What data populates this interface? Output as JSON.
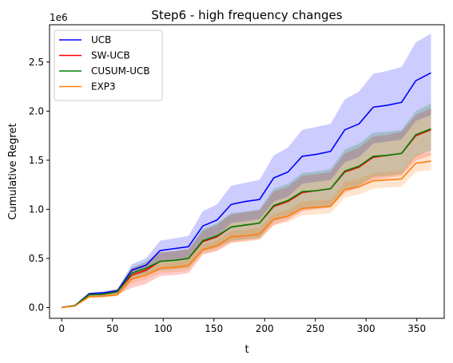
{
  "chart_data": {
    "type": "line",
    "title": "Step6 - high frequency changes",
    "xlabel": "t",
    "ylabel": "Cumulative Regret",
    "y_scale_label": "1e6",
    "xlim": [
      -12,
      377
    ],
    "ylim": [
      -110000,
      2880000
    ],
    "x_ticks": [
      0,
      50,
      100,
      150,
      200,
      250,
      300,
      350
    ],
    "x_tick_labels": [
      "0",
      "50",
      "100",
      "150",
      "200",
      "250",
      "300",
      "350"
    ],
    "y_ticks": [
      0,
      500000,
      1000000,
      1500000,
      2000000,
      2500000
    ],
    "y_tick_labels": [
      "0.0",
      "0.5",
      "1.0",
      "1.5",
      "2.0",
      "2.5"
    ],
    "grid": false,
    "legend_position": "top-left",
    "x": [
      0,
      13,
      27,
      41,
      55,
      69,
      83,
      97,
      111,
      125,
      139,
      153,
      167,
      181,
      195,
      209,
      223,
      237,
      251,
      265,
      279,
      293,
      307,
      321,
      335,
      349,
      364
    ],
    "series": [
      {
        "name": "UCB",
        "color": "#0000ff",
        "band_color": "#0000ff",
        "values": [
          0,
          20000,
          140000,
          150000,
          170000,
          380000,
          430000,
          580000,
          600000,
          620000,
          830000,
          890000,
          1050000,
          1080000,
          1100000,
          1320000,
          1380000,
          1540000,
          1560000,
          1590000,
          1810000,
          1870000,
          2040000,
          2060000,
          2090000,
          2310000,
          2390000
        ],
        "lower": [
          0,
          15000,
          130000,
          135000,
          150000,
          320000,
          360000,
          470000,
          485000,
          500000,
          680000,
          730000,
          860000,
          880000,
          900000,
          1080000,
          1130000,
          1260000,
          1280000,
          1300000,
          1480000,
          1530000,
          1670000,
          1690000,
          1710000,
          1900000,
          1960000
        ],
        "upper": [
          0,
          25000,
          150000,
          165000,
          190000,
          440000,
          500000,
          680000,
          705000,
          730000,
          980000,
          1050000,
          1240000,
          1270000,
          1300000,
          1550000,
          1630000,
          1810000,
          1840000,
          1870000,
          2120000,
          2200000,
          2380000,
          2410000,
          2450000,
          2700000,
          2790000
        ]
      },
      {
        "name": "SW-UCB",
        "color": "#ff0000",
        "band_color": "#ff0000",
        "values": [
          0,
          20000,
          130000,
          135000,
          160000,
          330000,
          380000,
          470000,
          480000,
          500000,
          670000,
          720000,
          820000,
          840000,
          860000,
          1030000,
          1080000,
          1170000,
          1190000,
          1210000,
          1380000,
          1430000,
          1530000,
          1550000,
          1570000,
          1750000,
          1810000
        ],
        "lower": [
          0,
          15000,
          110000,
          115000,
          130000,
          200000,
          240000,
          320000,
          330000,
          350000,
          540000,
          580000,
          660000,
          680000,
          700000,
          840000,
          890000,
          980000,
          1000000,
          1020000,
          1170000,
          1220000,
          1300000,
          1320000,
          1340000,
          1500000,
          1550000
        ],
        "upper": [
          0,
          25000,
          150000,
          155000,
          190000,
          400000,
          450000,
          560000,
          575000,
          595000,
          780000,
          840000,
          950000,
          970000,
          990000,
          1180000,
          1230000,
          1340000,
          1360000,
          1380000,
          1570000,
          1630000,
          1740000,
          1760000,
          1790000,
          1960000,
          2030000
        ]
      },
      {
        "name": "CUSUM-UCB",
        "color": "#008000",
        "band_color": "#008000",
        "values": [
          0,
          20000,
          130000,
          135000,
          160000,
          350000,
          400000,
          470000,
          480000,
          500000,
          680000,
          730000,
          820000,
          840000,
          860000,
          1040000,
          1090000,
          1180000,
          1190000,
          1210000,
          1390000,
          1440000,
          1540000,
          1550000,
          1570000,
          1760000,
          1820000
        ],
        "lower": [
          0,
          15000,
          110000,
          115000,
          140000,
          290000,
          330000,
          380000,
          390000,
          405000,
          570000,
          610000,
          680000,
          695000,
          710000,
          880000,
          920000,
          1000000,
          1010000,
          1030000,
          1200000,
          1240000,
          1330000,
          1340000,
          1360000,
          1540000,
          1600000
        ],
        "upper": [
          0,
          25000,
          150000,
          155000,
          185000,
          410000,
          470000,
          560000,
          575000,
          595000,
          800000,
          860000,
          960000,
          980000,
          1000000,
          1210000,
          1260000,
          1370000,
          1385000,
          1410000,
          1610000,
          1670000,
          1780000,
          1790000,
          1810000,
          2000000,
          2080000
        ]
      },
      {
        "name": "EXP3",
        "color": "#ff7f0e",
        "band_color": "#ff7f0e",
        "values": [
          0,
          15000,
          110000,
          115000,
          130000,
          290000,
          330000,
          400000,
          410000,
          430000,
          590000,
          630000,
          720000,
          730000,
          750000,
          900000,
          930000,
          1010000,
          1020000,
          1030000,
          1200000,
          1230000,
          1290000,
          1300000,
          1310000,
          1470000,
          1490000
        ],
        "lower": [
          0,
          12000,
          95000,
          100000,
          115000,
          250000,
          285000,
          350000,
          360000,
          375000,
          540000,
          575000,
          660000,
          670000,
          685000,
          840000,
          870000,
          940000,
          950000,
          960000,
          1120000,
          1150000,
          1210000,
          1220000,
          1230000,
          1380000,
          1400000
        ],
        "upper": [
          0,
          18000,
          125000,
          130000,
          145000,
          330000,
          375000,
          450000,
          460000,
          485000,
          640000,
          685000,
          780000,
          790000,
          815000,
          960000,
          990000,
          1080000,
          1090000,
          1100000,
          1280000,
          1310000,
          1370000,
          1380000,
          1390000,
          1560000,
          1580000
        ]
      }
    ]
  }
}
